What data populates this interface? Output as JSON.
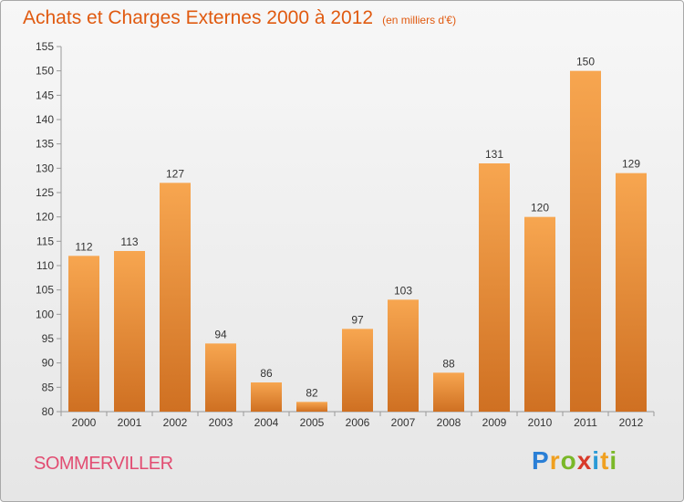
{
  "title": "Achats et Charges Externes 2000 à 2012",
  "subtitle": "(en milliers d'€)",
  "commune": "SOMMERVILLER",
  "brand": {
    "letters": [
      "P",
      "r",
      "o",
      "x",
      "i",
      "t",
      "i"
    ],
    "colors": [
      "#2a7fd6",
      "#f0a020",
      "#7ab828",
      "#d83a2a",
      "#2a9ad6",
      "#f0a020",
      "#7ab828"
    ]
  },
  "colors": {
    "title": "#e05a10",
    "commune": "#e24d72",
    "bar_top": "#f7a650",
    "bar_bottom": "#cf7022"
  },
  "chart_data": {
    "type": "bar",
    "title": "Achats et Charges Externes 2000 à 2012",
    "subtitle": "(en milliers d'€)",
    "xlabel": "",
    "ylabel": "",
    "categories": [
      "2000",
      "2001",
      "2002",
      "2003",
      "2004",
      "2005",
      "2006",
      "2007",
      "2008",
      "2009",
      "2010",
      "2011",
      "2012"
    ],
    "values": [
      112,
      113,
      127,
      94,
      86,
      82,
      97,
      103,
      88,
      131,
      120,
      150,
      129
    ],
    "ylim": [
      80,
      155
    ],
    "yticks": [
      80,
      85,
      90,
      95,
      100,
      105,
      110,
      115,
      120,
      125,
      130,
      135,
      140,
      145,
      150,
      155
    ],
    "grid": false,
    "legend": "none"
  }
}
